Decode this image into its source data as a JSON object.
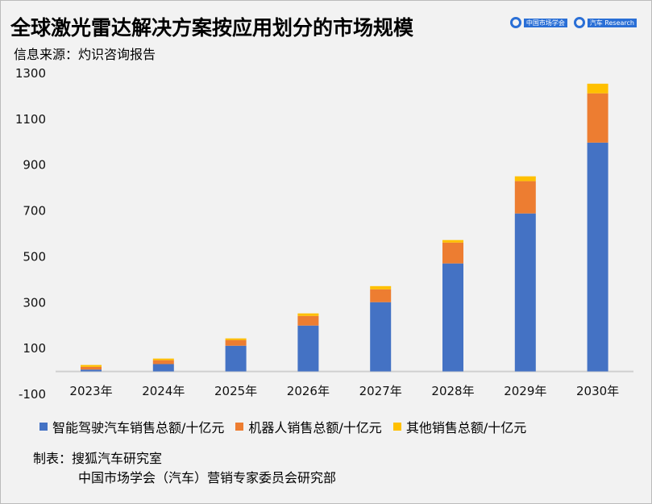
{
  "title": "全球激光雷达解决方案按应用划分的市场规模",
  "source": "信息来源：灼识咨询报告",
  "logos": {
    "logo1": "中国市场学会 汽车营销专家委员会",
    "logo2": "搜狐汽车 Research 研究室"
  },
  "credits": {
    "line1": "制表：搜狐汽车研究室",
    "line2": "中国市场学会（汽车）营销专家委员会研究部"
  },
  "chart_data": {
    "type": "bar",
    "stacked": true,
    "categories": [
      "2023年",
      "2024年",
      "2025年",
      "2026年",
      "2027年",
      "2028年",
      "2029年",
      "2030年"
    ],
    "series": [
      {
        "name": "智能驾驶汽车销售总额/十亿元",
        "color": "#4472c4",
        "values": [
          8,
          32,
          112,
          200,
          302,
          471,
          689,
          998
        ]
      },
      {
        "name": "机器人销售总额/十亿元",
        "color": "#ed7d31",
        "values": [
          12,
          17,
          25,
          42,
          56,
          91,
          141,
          215
        ]
      },
      {
        "name": "其他销售总额/十亿元",
        "color": "#ffc000",
        "values": [
          8,
          7,
          7,
          11,
          14,
          11,
          21,
          42
        ]
      }
    ],
    "yticks": [
      1300,
      1100,
      900,
      700,
      500,
      300,
      100,
      -100
    ],
    "ylim": [
      -100,
      1300
    ],
    "grid": false,
    "legend": "bottom"
  }
}
